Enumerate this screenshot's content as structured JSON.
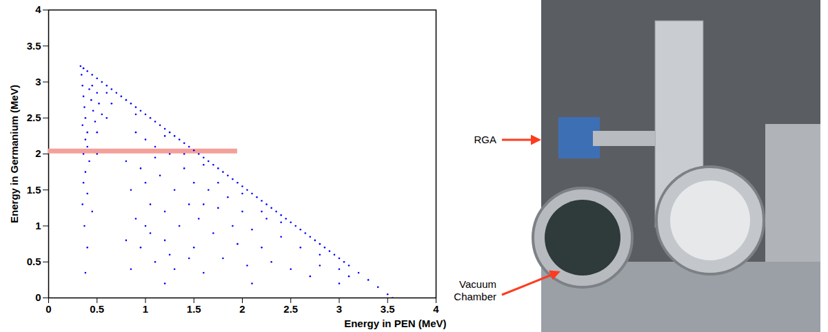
{
  "chart_data": {
    "type": "scatter",
    "xlabel": "Energy in PEN (MeV)",
    "ylabel": "Energy in Germanium (MeV)",
    "color": "#0000ff",
    "marker": "dot",
    "xlim": [
      0,
      4
    ],
    "xticks": [
      0,
      0.5,
      1,
      1.5,
      2,
      2.5,
      3,
      3.5,
      4
    ],
    "ylim": [
      0,
      4
    ],
    "yticks": [
      0,
      0.5,
      1,
      1.5,
      2,
      2.5,
      3,
      3.5,
      4
    ],
    "band": {
      "y": 2.04,
      "x_start": 0,
      "x_end": 1.95,
      "color": "#f4a09a"
    },
    "x": [
      0.33,
      0.36,
      0.4,
      0.45,
      0.5,
      0.55,
      0.6,
      0.65,
      0.7,
      0.75,
      0.8,
      0.85,
      0.9,
      0.95,
      1.0,
      1.05,
      1.1,
      1.15,
      1.2,
      1.25,
      1.3,
      1.35,
      1.4,
      1.45,
      1.5,
      1.55,
      1.6,
      1.65,
      1.7,
      1.75,
      1.8,
      1.85,
      1.9,
      1.95,
      2.0,
      2.05,
      2.1,
      2.15,
      2.2,
      2.25,
      2.3,
      2.35,
      2.4,
      2.45,
      2.5,
      2.55,
      2.6,
      2.65,
      2.7,
      2.75,
      2.8,
      2.85,
      2.9,
      2.95,
      3.0,
      3.05,
      3.1,
      3.2,
      3.3,
      3.4,
      3.5,
      3.55,
      0.6,
      0.9,
      1.2,
      1.6,
      2.0,
      2.4,
      2.8,
      3.0,
      3.1,
      2.2,
      0.34,
      0.35,
      0.36,
      0.37,
      0.38,
      0.35,
      0.4,
      0.42,
      0.44,
      0.46,
      0.48,
      0.38,
      0.4,
      0.36,
      0.45,
      0.5,
      0.52,
      0.55,
      0.5,
      0.42,
      0.38,
      0.36,
      0.4,
      0.35,
      0.37,
      0.4,
      0.38,
      0.45,
      0.5,
      0.6,
      0.65,
      0.8,
      0.85,
      0.9,
      0.95,
      1.0,
      1.0,
      1.05,
      1.05,
      1.1,
      1.1,
      1.15,
      1.2,
      1.2,
      1.25,
      1.3,
      1.3,
      1.35,
      1.4,
      1.45,
      1.5,
      1.5,
      1.55,
      1.6,
      1.65,
      1.7,
      1.75,
      1.8,
      1.85,
      1.9,
      1.95,
      2.0,
      2.05,
      2.1,
      2.2,
      2.25,
      2.3,
      2.4,
      2.5,
      2.6,
      2.7,
      2.8,
      0.9,
      1.1,
      0.85,
      1.4,
      1.6,
      1.0,
      1.25,
      0.95,
      1.75,
      0.8,
      3.0,
      1.2,
      2.1,
      1.45
    ],
    "values": [
      3.22,
      3.19,
      3.15,
      3.1,
      3.05,
      3.0,
      2.95,
      2.9,
      2.85,
      2.8,
      2.75,
      2.7,
      2.65,
      2.6,
      2.55,
      2.5,
      2.45,
      2.4,
      2.35,
      2.3,
      2.25,
      2.2,
      2.15,
      2.1,
      2.05,
      2.0,
      1.95,
      1.9,
      1.85,
      1.8,
      1.75,
      1.7,
      1.65,
      1.6,
      1.55,
      1.5,
      1.45,
      1.4,
      1.35,
      1.3,
      1.25,
      1.2,
      1.15,
      1.1,
      1.05,
      1.0,
      0.95,
      0.9,
      0.85,
      0.8,
      0.75,
      0.7,
      0.65,
      0.6,
      0.55,
      0.5,
      0.45,
      0.35,
      0.25,
      0.15,
      0.05,
      0.0,
      2.85,
      2.55,
      2.25,
      1.85,
      1.45,
      1.05,
      0.6,
      0.4,
      0.3,
      1.2,
      3.1,
      2.95,
      2.8,
      2.65,
      2.5,
      2.4,
      2.3,
      2.9,
      2.75,
      2.6,
      2.45,
      2.2,
      2.1,
      2.0,
      2.95,
      2.85,
      2.7,
      2.55,
      2.3,
      1.9,
      1.75,
      1.6,
      1.45,
      1.3,
      1.0,
      0.7,
      0.35,
      1.2,
      2.0,
      2.5,
      2.7,
      1.9,
      1.5,
      1.1,
      0.7,
      2.2,
      1.6,
      1.3,
      0.9,
      0.5,
      1.95,
      1.7,
      1.2,
      0.8,
      2.0,
      1.5,
      0.4,
      1.0,
      1.8,
      1.3,
      0.7,
      1.6,
      1.1,
      0.35,
      1.5,
      0.9,
      1.25,
      0.55,
      1.4,
      1.0,
      0.75,
      1.2,
      0.45,
      0.95,
      0.7,
      1.1,
      0.5,
      0.85,
      0.4,
      0.7,
      0.3,
      0.45,
      2.3,
      2.1,
      0.4,
      2.0,
      1.3,
      1.0,
      0.6,
      1.8,
      1.6,
      0.8,
      0.2,
      0.2,
      0.2,
      0.55
    ]
  },
  "photo": {
    "labels": [
      "RGA",
      "Vacuum Chamber"
    ],
    "label_color": "#ff3b1f"
  }
}
